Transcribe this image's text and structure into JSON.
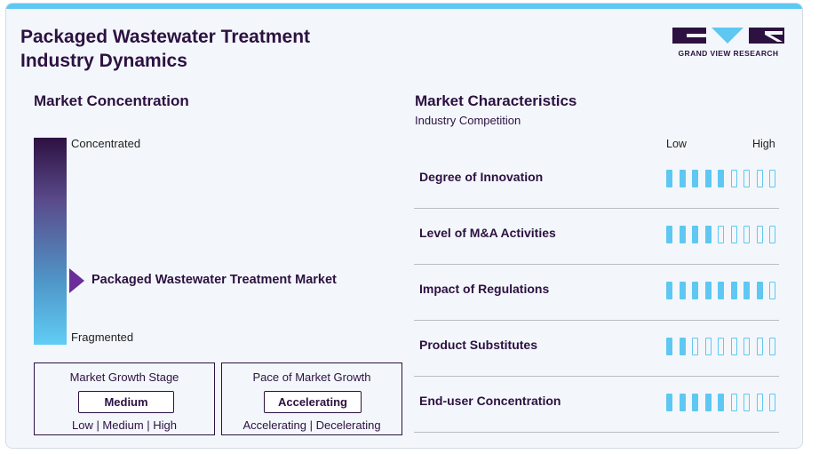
{
  "header": {
    "title": "Packaged Wastewater Treatment Industry Dynamics",
    "brand": "GRAND VIEW RESEARCH"
  },
  "concentration": {
    "title": "Market Concentration",
    "top_label": "Concentrated",
    "bottom_label": "Fragmented",
    "marker_label": "Packaged Wastewater Treatment Market",
    "marker_level": 0.31
  },
  "growth_stage": {
    "title": "Market Growth Stage",
    "value": "Medium",
    "scale": "Low | Medium | High"
  },
  "growth_pace": {
    "title": "Pace of Market Growth",
    "value": "Accelerating",
    "scale": "Accelerating | Decelerating"
  },
  "characteristics": {
    "title": "Market Characteristics",
    "subtitle": "Industry Competition",
    "low_label": "Low",
    "high_label": "High",
    "segments_total": 9,
    "accent_color": "#5ec8f2",
    "rows": [
      {
        "label": "Degree of Innovation",
        "level": 5
      },
      {
        "label": "Level of M&A Activities",
        "level": 4
      },
      {
        "label": "Impact of Regulations",
        "level": 8
      },
      {
        "label": "Product Substitutes",
        "level": 2
      },
      {
        "label": "End-user Concentration",
        "level": 5
      }
    ]
  }
}
